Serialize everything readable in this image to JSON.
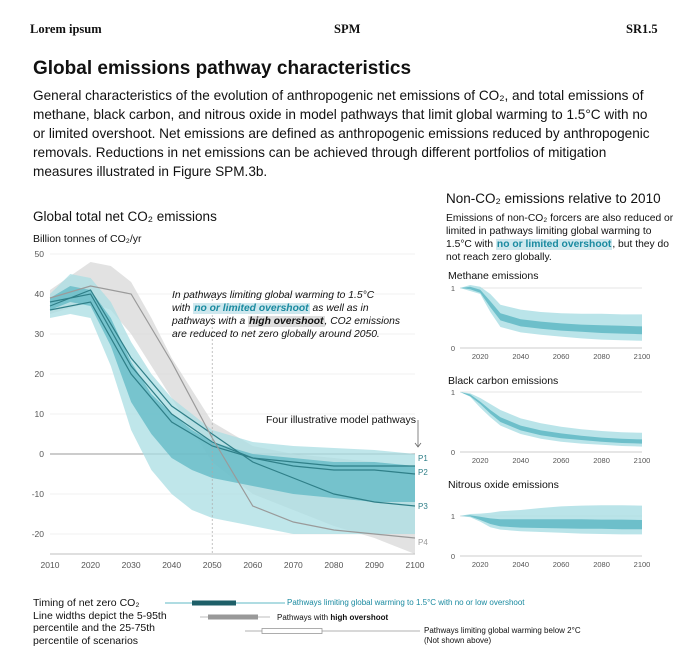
{
  "header": {
    "left": "Lorem ipsum",
    "center": "SPM",
    "right": "SR1.5"
  },
  "title": "Global emissions pathway characteristics",
  "intro": "General characteristics of the evolution of anthropogenic net emissions of CO₂, and total emissions of methane, black carbon, and nitrous oxide in model pathways that limit global warming to 1.5°C with no or limited overshoot. Net emissions are defined as anthropogenic emissions reduced by anthropogenic removals. Reductions in net emissions can be achieved through different portfolios of mitigation measures illustrated in Figure SPM.3b.",
  "main_chart": {
    "title": "Global total net CO₂ emissions",
    "ylabel": "Billion tonnes of CO₂/yr",
    "annotation": {
      "line1": "In pathways limiting global warming to 1.5°C",
      "line2_pre": "with ",
      "line2_hl": "no or limited overshoot",
      "line2_post": " as well as in",
      "line3_pre": "pathways with a ",
      "line3_hl": "high overshoot",
      "line3_post": ", CO2 emissions",
      "line4": "are reduced to net zero globally around 2050."
    },
    "illustrative_label": "Four illustrative model pathways"
  },
  "nonco2": {
    "title": "Non-CO₂ emissions relative to 2010",
    "desc_pre": "Emissions of non-CO₂ forcers are also reduced or limited in pathways limiting global warming to 1.5°C with ",
    "desc_hl": "no or limited overshoot",
    "desc_post": ", but they do not reach zero globally.",
    "panels": {
      "methane": "Methane emissions",
      "bc": "Black carbon emissions",
      "n2o": "Nitrous oxide emissions"
    }
  },
  "legend": {
    "left_line1": "Timing of net zero CO₂",
    "left_line2": "Line widths depict the 5-95th",
    "left_line3": "percentile and the 25-75th",
    "left_line4": "percentile of scenarios",
    "item1": "Pathways limiting global warming to 1.5°C with no or low overshoot",
    "item2_pre": "Pathways with ",
    "item2_bold": "high overshoot",
    "item3_line1": "Pathways limiting global warming below 2°C",
    "item3_line2": "(Not shown above)"
  },
  "colors": {
    "teal": "#5fb8c4",
    "teal_light": "#a9dde3",
    "teal_dark": "#2f7f88",
    "grey": "#c8c8c8",
    "grey_dark": "#999999",
    "navy": "#1e5f68"
  },
  "chart_data": [
    {
      "type": "area",
      "title": "Global total net CO₂ emissions",
      "ylabel": "Billion tonnes of CO₂/yr",
      "xlim": [
        2010,
        2100
      ],
      "ylim": [
        -25,
        50
      ],
      "x_ticks": [
        2010,
        2020,
        2030,
        2040,
        2050,
        2060,
        2070,
        2080,
        2090,
        2100
      ],
      "y_ticks": [
        50,
        40,
        30,
        20,
        10,
        0,
        -10,
        -20
      ],
      "bands": {
        "no_or_limited_overshoot_5_95": {
          "x": [
            2010,
            2015,
            2020,
            2025,
            2030,
            2035,
            2040,
            2045,
            2050,
            2060,
            2070,
            2080,
            2090,
            2100
          ],
          "upper": [
            40,
            45,
            44,
            38,
            28,
            20,
            14,
            10,
            6,
            3,
            2,
            1.5,
            1,
            0
          ],
          "lower": [
            34,
            35,
            34,
            22,
            6,
            -4,
            -10,
            -14,
            -16,
            -18,
            -20,
            -20,
            -20,
            -20
          ]
        },
        "no_or_limited_overshoot_25_75": {
          "x": [
            2010,
            2015,
            2020,
            2025,
            2030,
            2035,
            2040,
            2045,
            2050,
            2060,
            2070,
            2080,
            2090,
            2100
          ],
          "upper": [
            39,
            42,
            41,
            34,
            23,
            15,
            10,
            6,
            3,
            0,
            -1,
            -2,
            -2,
            -3
          ],
          "lower": [
            36,
            38,
            37,
            27,
            13,
            5,
            -1,
            -4,
            -6,
            -8,
            -10,
            -11,
            -12,
            -12
          ]
        },
        "high_overshoot": {
          "x": [
            2010,
            2020,
            2025,
            2030,
            2035,
            2040,
            2045,
            2050,
            2060,
            2070,
            2080,
            2090,
            2100
          ],
          "upper": [
            41,
            48,
            47,
            43,
            34,
            24,
            16,
            8,
            2,
            0,
            -1,
            -2,
            -3
          ],
          "lower": [
            35,
            38,
            36,
            30,
            22,
            14,
            6,
            -2,
            -10,
            -14,
            -18,
            -21,
            -25
          ]
        }
      },
      "series": [
        {
          "name": "P1",
          "x": [
            2010,
            2020,
            2030,
            2040,
            2050,
            2060,
            2070,
            2080,
            2090,
            2100
          ],
          "y": [
            36,
            38,
            20,
            8,
            2,
            -1,
            -2,
            -3,
            -3,
            -3
          ]
        },
        {
          "name": "P2",
          "x": [
            2010,
            2020,
            2030,
            2040,
            2050,
            2060,
            2070,
            2080,
            2090,
            2100
          ],
          "y": [
            38,
            40,
            22,
            10,
            3,
            -1,
            -3,
            -4,
            -4,
            -5
          ]
        },
        {
          "name": "P3",
          "x": [
            2010,
            2020,
            2030,
            2040,
            2050,
            2060,
            2070,
            2080,
            2090,
            2100
          ],
          "y": [
            37,
            41,
            24,
            12,
            5,
            -2,
            -6,
            -10,
            -12,
            -13
          ]
        },
        {
          "name": "P4",
          "x": [
            2010,
            2020,
            2030,
            2040,
            2050,
            2060,
            2070,
            2080,
            2090,
            2100
          ],
          "y": [
            39,
            42,
            40,
            23,
            4,
            -13,
            -17,
            -19,
            -20,
            -21
          ]
        }
      ]
    },
    {
      "type": "area",
      "title": "Methane emissions",
      "xlim": [
        2010,
        2100
      ],
      "ylim": [
        0,
        1
      ],
      "x_ticks": [
        2020,
        2040,
        2060,
        2080,
        2100
      ],
      "y_ticks": [
        1,
        0
      ],
      "x": [
        2010,
        2015,
        2020,
        2025,
        2030,
        2040,
        2050,
        2060,
        2070,
        2080,
        2090,
        2100
      ],
      "outer_upper": [
        1,
        1.05,
        1.02,
        0.9,
        0.72,
        0.64,
        0.6,
        0.58,
        0.57,
        0.57,
        0.56,
        0.56
      ],
      "outer_lower": [
        1,
        0.95,
        0.9,
        0.6,
        0.35,
        0.26,
        0.22,
        0.19,
        0.16,
        0.14,
        0.13,
        0.12
      ],
      "inner_upper": [
        1,
        1.02,
        0.97,
        0.78,
        0.58,
        0.48,
        0.44,
        0.41,
        0.39,
        0.38,
        0.37,
        0.36
      ],
      "inner_lower": [
        1,
        0.98,
        0.92,
        0.68,
        0.46,
        0.36,
        0.32,
        0.29,
        0.27,
        0.25,
        0.24,
        0.23
      ]
    },
    {
      "type": "area",
      "title": "Black carbon emissions",
      "xlim": [
        2010,
        2100
      ],
      "ylim": [
        0,
        1
      ],
      "x_ticks": [
        2020,
        2040,
        2060,
        2080,
        2100
      ],
      "y_ticks": [
        1,
        0
      ],
      "x": [
        2010,
        2015,
        2020,
        2025,
        2030,
        2040,
        2050,
        2060,
        2070,
        2080,
        2090,
        2100
      ],
      "outer_upper": [
        1,
        0.98,
        0.9,
        0.8,
        0.7,
        0.56,
        0.48,
        0.42,
        0.38,
        0.35,
        0.33,
        0.32
      ],
      "outer_lower": [
        1,
        0.92,
        0.74,
        0.58,
        0.44,
        0.3,
        0.22,
        0.17,
        0.14,
        0.12,
        0.1,
        0.09
      ],
      "inner_upper": [
        1,
        0.96,
        0.84,
        0.7,
        0.58,
        0.44,
        0.36,
        0.31,
        0.27,
        0.24,
        0.22,
        0.21
      ],
      "inner_lower": [
        1,
        0.93,
        0.8,
        0.64,
        0.5,
        0.36,
        0.28,
        0.23,
        0.2,
        0.17,
        0.15,
        0.14
      ]
    },
    {
      "type": "area",
      "title": "Nitrous oxide emissions",
      "xlim": [
        2010,
        2100
      ],
      "ylim": [
        0,
        1.5
      ],
      "x_ticks": [
        2020,
        2040,
        2060,
        2080,
        2100
      ],
      "y_ticks": [
        1,
        0
      ],
      "x": [
        2010,
        2015,
        2020,
        2025,
        2030,
        2040,
        2050,
        2060,
        2070,
        2080,
        2090,
        2100
      ],
      "outer_upper": [
        1,
        1.05,
        1.06,
        1.08,
        1.12,
        1.15,
        1.2,
        1.24,
        1.26,
        1.27,
        1.27,
        1.26
      ],
      "outer_lower": [
        1,
        0.97,
        0.86,
        0.72,
        0.66,
        0.62,
        0.6,
        0.58,
        0.56,
        0.55,
        0.54,
        0.54
      ],
      "inner_upper": [
        1,
        1.02,
        0.98,
        0.94,
        0.92,
        0.92,
        0.92,
        0.92,
        0.92,
        0.91,
        0.91,
        0.9
      ],
      "inner_lower": [
        1,
        0.99,
        0.9,
        0.8,
        0.74,
        0.71,
        0.7,
        0.69,
        0.68,
        0.68,
        0.67,
        0.67
      ]
    }
  ]
}
